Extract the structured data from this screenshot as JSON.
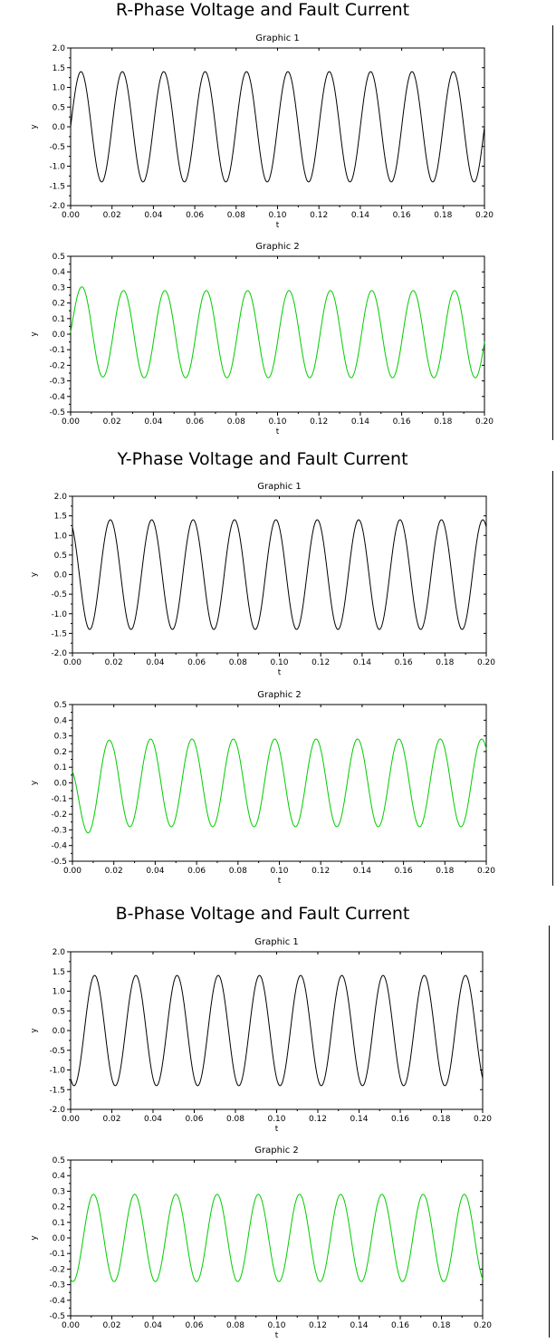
{
  "sections": [
    {
      "title": "R-Phase Voltage and Fault Current"
    },
    {
      "title": "Y-Phase Voltage and Fault Current"
    },
    {
      "title": "B-Phase Voltage and Fault Current"
    }
  ],
  "chart_data": [
    {
      "type": "line",
      "title": "Graphic 1",
      "xlabel": "t",
      "ylabel": "y",
      "xlim": [
        0,
        0.2
      ],
      "ylim": [
        -2,
        2
      ],
      "xticks": [
        "0.00",
        "0.02",
        "0.04",
        "0.06",
        "0.08",
        "0.10",
        "0.12",
        "0.14",
        "0.16",
        "0.18",
        "0.20"
      ],
      "yticks": [
        "-2.0",
        "-1.5",
        "-1.0",
        "-0.5",
        "0.0",
        "0.5",
        "1.0",
        "1.5",
        "2.0"
      ],
      "series": [
        {
          "color": "#000000",
          "amplitude": 1.4,
          "frequency_hz": 50,
          "phase_deg": 0
        }
      ]
    },
    {
      "type": "line",
      "title": "Graphic 2",
      "xlabel": "t",
      "ylabel": "y",
      "xlim": [
        0,
        0.2
      ],
      "ylim": [
        -0.5,
        0.5
      ],
      "xticks": [
        "0.00",
        "0.02",
        "0.04",
        "0.06",
        "0.08",
        "0.10",
        "0.12",
        "0.14",
        "0.16",
        "0.18",
        "0.20"
      ],
      "yticks": [
        "-0.5",
        "-0.4",
        "-0.3",
        "-0.2",
        "-0.1",
        "0.0",
        "0.1",
        "0.2",
        "0.3",
        "0.4",
        "0.5"
      ],
      "series": [
        {
          "color": "#00cc00",
          "amplitude": 0.28,
          "frequency_hz": 50,
          "phase_deg": -10,
          "initial_peak": 0.37,
          "initial_trough": -0.25
        }
      ]
    },
    {
      "type": "line",
      "title": "Graphic 1",
      "xlabel": "t",
      "ylabel": "y",
      "xlim": [
        0,
        0.2
      ],
      "ylim": [
        -2,
        2
      ],
      "xticks": [
        "0.00",
        "0.02",
        "0.04",
        "0.06",
        "0.08",
        "0.10",
        "0.12",
        "0.14",
        "0.16",
        "0.18",
        "0.20"
      ],
      "yticks": [
        "-2.0",
        "-1.5",
        "-1.0",
        "-0.5",
        "0.0",
        "0.5",
        "1.0",
        "1.5",
        "2.0"
      ],
      "series": [
        {
          "color": "#000000",
          "amplitude": 1.4,
          "frequency_hz": 50,
          "phase_deg": 120
        }
      ]
    },
    {
      "type": "line",
      "title": "Graphic 2",
      "xlabel": "t",
      "ylabel": "y",
      "xlim": [
        0,
        0.2
      ],
      "ylim": [
        -0.5,
        0.5
      ],
      "xticks": [
        "0.00",
        "0.02",
        "0.04",
        "0.06",
        "0.08",
        "0.10",
        "0.12",
        "0.14",
        "0.16",
        "0.18",
        "0.20"
      ],
      "yticks": [
        "-0.5",
        "-0.4",
        "-0.3",
        "-0.2",
        "-0.1",
        "0.0",
        "0.1",
        "0.2",
        "0.3",
        "0.4",
        "0.5"
      ],
      "series": [
        {
          "color": "#00cc00",
          "amplitude": 0.28,
          "frequency_hz": 50,
          "phase_deg": 130,
          "initial_peak": 0.07,
          "initial_trough": -0.35
        }
      ]
    },
    {
      "type": "line",
      "title": "Graphic 1",
      "xlabel": "t",
      "ylabel": "y",
      "xlim": [
        0,
        0.2
      ],
      "ylim": [
        -2,
        2
      ],
      "xticks": [
        "0.00",
        "0.02",
        "0.04",
        "0.06",
        "0.08",
        "0.10",
        "0.12",
        "0.14",
        "0.16",
        "0.18",
        "0.20"
      ],
      "yticks": [
        "-2.0",
        "-1.5",
        "-1.0",
        "-0.5",
        "0.0",
        "0.5",
        "1.0",
        "1.5",
        "2.0"
      ],
      "series": [
        {
          "color": "#000000",
          "amplitude": 1.4,
          "frequency_hz": 50,
          "phase_deg": -120
        }
      ]
    },
    {
      "type": "line",
      "title": "Graphic 2",
      "xlabel": "t",
      "ylabel": "y",
      "xlim": [
        0,
        0.2
      ],
      "ylim": [
        -0.5,
        0.5
      ],
      "xticks": [
        "0.00",
        "0.02",
        "0.04",
        "0.06",
        "0.08",
        "0.10",
        "0.12",
        "0.14",
        "0.16",
        "0.18",
        "0.20"
      ],
      "yticks": [
        "-0.5",
        "-0.4",
        "-0.3",
        "-0.2",
        "-0.1",
        "0.0",
        "0.1",
        "0.2",
        "0.3",
        "0.4",
        "0.5"
      ],
      "series": [
        {
          "color": "#00cc00",
          "amplitude": 0.28,
          "frequency_hz": 50,
          "phase_deg": -110
        }
      ]
    }
  ]
}
